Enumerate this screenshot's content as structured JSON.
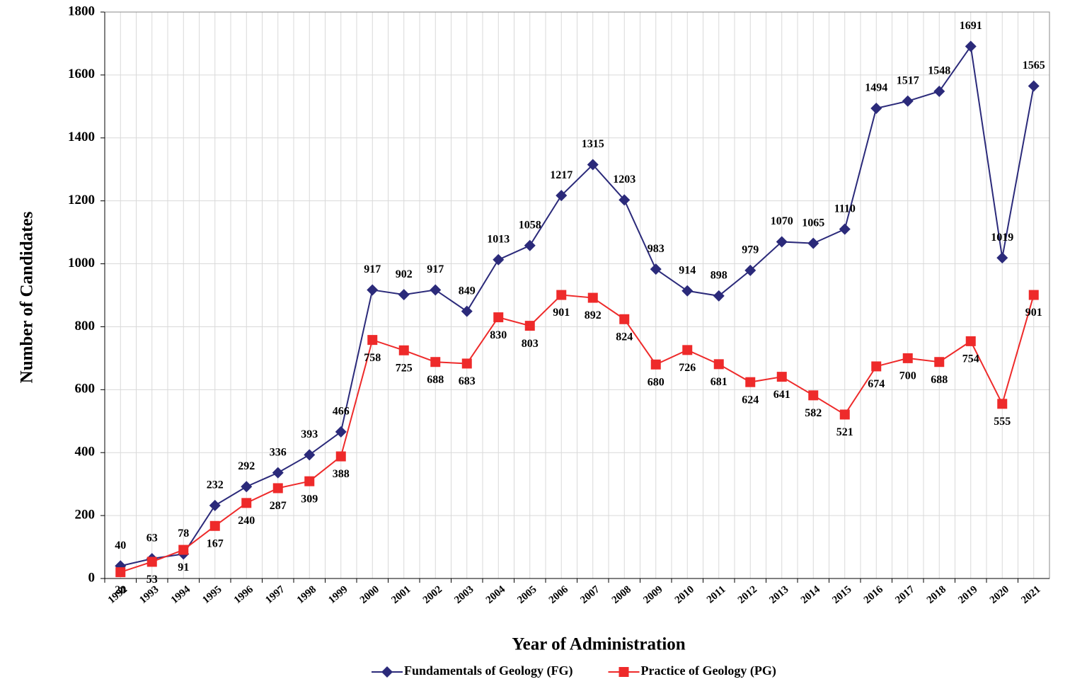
{
  "chart_data": {
    "type": "line",
    "x_label": "Year of Administration",
    "y_label": "Number of Candidates",
    "categories": [
      "1992",
      "1993",
      "1994",
      "1995",
      "1996",
      "1997",
      "1998",
      "1999",
      "2000",
      "2001",
      "2002",
      "2003",
      "2004",
      "2005",
      "2006",
      "2007",
      "2008",
      "2009",
      "2010",
      "2011",
      "2012",
      "2013",
      "2014",
      "2015",
      "2016",
      "2017",
      "2018",
      "2019",
      "2020",
      "2021"
    ],
    "series": [
      {
        "name": "Fundamentals of Geology (FG)",
        "color": "#2b2a7a",
        "marker": "diamond",
        "values": [
          40,
          63,
          78,
          232,
          292,
          336,
          393,
          466,
          917,
          902,
          917,
          849,
          1013,
          1058,
          1217,
          1315,
          1203,
          983,
          914,
          898,
          979,
          1070,
          1065,
          1110,
          1494,
          1517,
          1548,
          1691,
          1019,
          1565
        ]
      },
      {
        "name": "Practice of Geology (PG)",
        "color": "#ee2a2a",
        "marker": "square",
        "values": [
          20,
          53,
          91,
          167,
          240,
          287,
          309,
          388,
          758,
          725,
          688,
          683,
          830,
          803,
          901,
          892,
          824,
          680,
          726,
          681,
          624,
          641,
          582,
          521,
          674,
          700,
          688,
          754,
          555,
          901
        ]
      }
    ],
    "ylim": [
      0,
      1800
    ],
    "yticks": [
      0,
      200,
      400,
      600,
      800,
      1000,
      1200,
      1400,
      1600,
      1800
    ],
    "grid": true,
    "legend": "bottom"
  }
}
